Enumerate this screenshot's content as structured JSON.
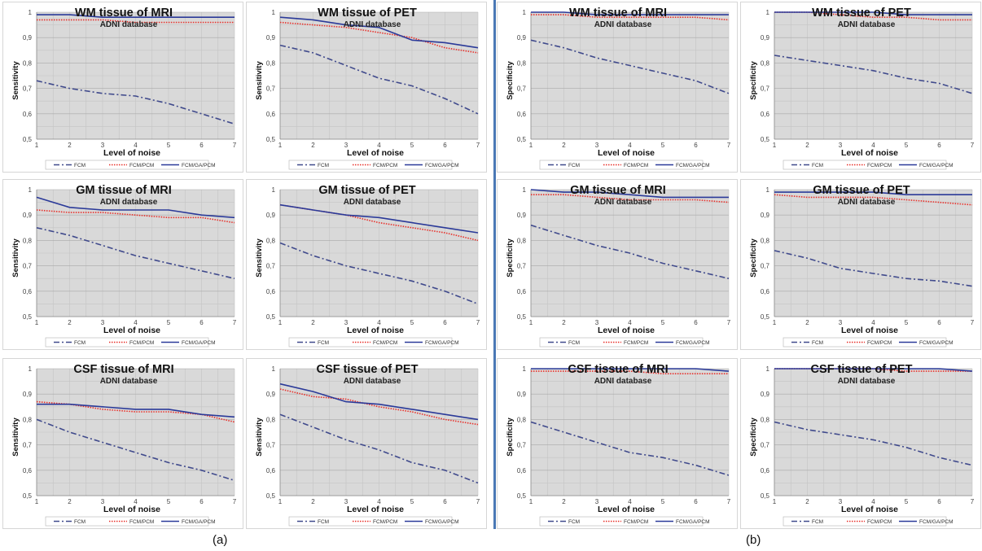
{
  "figure_labels": {
    "a": "(a)",
    "b": "(b)"
  },
  "colors": {
    "plot_bg": "#d9d9d9",
    "fcm": "#404a8c",
    "fcm_pcm": "#e8302a",
    "fcm_ga_pcm": "#2b3a99"
  },
  "chart_data": [
    {
      "id": "a-wm-mri",
      "group": "(a)",
      "type": "line",
      "title": "WM tissue of MRI",
      "subtitle": "ADNI database",
      "xlabel": "Level of noise",
      "ylabel": "Sensitivity",
      "x": [
        1,
        2,
        3,
        4,
        5,
        6,
        7
      ],
      "ylim": [
        0.5,
        1
      ],
      "yticks": [
        "0,5",
        "0,6",
        "0,7",
        "0,8",
        "0,9",
        "1"
      ],
      "xticks": [
        "1",
        "2",
        "3",
        "4",
        "5",
        "6",
        "7"
      ],
      "grid": true,
      "legend": "bottom",
      "series": [
        {
          "name": "FCM",
          "style": "dash-dot",
          "values": [
            0.73,
            0.7,
            0.68,
            0.67,
            0.64,
            0.6,
            0.56
          ]
        },
        {
          "name": "FCM/PCM",
          "style": "dotted",
          "values": [
            0.97,
            0.97,
            0.97,
            0.96,
            0.96,
            0.96,
            0.96
          ]
        },
        {
          "name": "FCM/GA/PCM",
          "style": "solid",
          "values": [
            0.99,
            0.99,
            0.98,
            0.98,
            0.98,
            0.98,
            0.98
          ]
        }
      ]
    },
    {
      "id": "a-wm-pet",
      "group": "(a)",
      "type": "line",
      "title": "WM tissue of PET",
      "subtitle": "ADNI database",
      "xlabel": "Level of noise",
      "ylabel": "Sensitivity",
      "x": [
        1,
        2,
        3,
        4,
        5,
        6,
        7
      ],
      "ylim": [
        0.5,
        1
      ],
      "yticks": [
        "0,5",
        "0,6",
        "0,7",
        "0,8",
        "0,9",
        "1"
      ],
      "xticks": [
        "1",
        "2",
        "3",
        "4",
        "5",
        "6",
        "7"
      ],
      "grid": true,
      "legend": "bottom",
      "series": [
        {
          "name": "FCM",
          "style": "dash-dot",
          "values": [
            0.87,
            0.84,
            0.79,
            0.74,
            0.71,
            0.66,
            0.6
          ]
        },
        {
          "name": "FCM/PCM",
          "style": "dotted",
          "values": [
            0.96,
            0.95,
            0.94,
            0.92,
            0.9,
            0.86,
            0.84
          ]
        },
        {
          "name": "FCM/GA/PCM",
          "style": "solid",
          "values": [
            0.98,
            0.97,
            0.95,
            0.94,
            0.89,
            0.88,
            0.86
          ]
        }
      ]
    },
    {
      "id": "b-wm-mri",
      "group": "(b)",
      "type": "line",
      "title": "WM tissue of MRI",
      "subtitle": "ADNI database",
      "xlabel": "Level of noise",
      "ylabel": "Specificity",
      "x": [
        1,
        2,
        3,
        4,
        5,
        6,
        7
      ],
      "ylim": [
        0.5,
        1
      ],
      "yticks": [
        "0,5",
        "0,6",
        "0,7",
        "0,8",
        "0,9",
        "1"
      ],
      "xticks": [
        "1",
        "2",
        "3",
        "4",
        "5",
        "6",
        "7"
      ],
      "grid": true,
      "legend": "bottom",
      "series": [
        {
          "name": "FCM",
          "style": "dash-dot",
          "values": [
            0.89,
            0.86,
            0.82,
            0.79,
            0.76,
            0.73,
            0.68
          ]
        },
        {
          "name": "FCM/PCM",
          "style": "dotted",
          "values": [
            0.99,
            0.99,
            0.98,
            0.98,
            0.98,
            0.98,
            0.97
          ]
        },
        {
          "name": "FCM/GA/PCM",
          "style": "solid",
          "values": [
            1.0,
            1.0,
            0.99,
            0.99,
            0.99,
            0.99,
            0.99
          ]
        }
      ]
    },
    {
      "id": "b-wm-pet",
      "group": "(b)",
      "type": "line",
      "title": "WM tissue of PET",
      "subtitle": "ADNI database",
      "xlabel": "Level of noise",
      "ylabel": "Specificity",
      "x": [
        1,
        2,
        3,
        4,
        5,
        6,
        7
      ],
      "ylim": [
        0.5,
        1
      ],
      "yticks": [
        "0,5",
        "0,6",
        "0,7",
        "0,8",
        "0,9",
        "1"
      ],
      "xticks": [
        "1",
        "2",
        "3",
        "4",
        "5",
        "6",
        "7"
      ],
      "grid": true,
      "legend": "bottom",
      "series": [
        {
          "name": "FCM",
          "style": "dash-dot",
          "values": [
            0.83,
            0.81,
            0.79,
            0.77,
            0.74,
            0.72,
            0.68
          ]
        },
        {
          "name": "FCM/PCM",
          "style": "dotted",
          "values": [
            1.0,
            1.0,
            0.99,
            0.98,
            0.98,
            0.97,
            0.97
          ]
        },
        {
          "name": "FCM/GA/PCM",
          "style": "solid",
          "values": [
            1.0,
            1.0,
            1.0,
            1.0,
            0.99,
            0.99,
            0.99
          ]
        }
      ]
    },
    {
      "id": "a-gm-mri",
      "group": "(a)",
      "type": "line",
      "title": "GM tissue of MRI",
      "subtitle": "ADNI database",
      "xlabel": "Level of noise",
      "ylabel": "Sensitivity",
      "x": [
        1,
        2,
        3,
        4,
        5,
        6,
        7
      ],
      "ylim": [
        0.5,
        1
      ],
      "yticks": [
        "0,5",
        "0,6",
        "0,7",
        "0,8",
        "0,9",
        "1"
      ],
      "xticks": [
        "1",
        "2",
        "3",
        "4",
        "5",
        "6",
        "7"
      ],
      "grid": true,
      "legend": "bottom",
      "series": [
        {
          "name": "FCM",
          "style": "dash-dot",
          "values": [
            0.85,
            0.82,
            0.78,
            0.74,
            0.71,
            0.68,
            0.65
          ]
        },
        {
          "name": "FCM/PCM",
          "style": "dotted",
          "values": [
            0.92,
            0.91,
            0.91,
            0.9,
            0.89,
            0.89,
            0.87
          ]
        },
        {
          "name": "FCM/GA/PCM",
          "style": "solid",
          "values": [
            0.97,
            0.93,
            0.92,
            0.92,
            0.92,
            0.9,
            0.89
          ]
        }
      ]
    },
    {
      "id": "a-gm-pet",
      "group": "(a)",
      "type": "line",
      "title": "GM tissue of PET",
      "subtitle": "ADNI database",
      "xlabel": "Level of noise",
      "ylabel": "Sensitivity",
      "x": [
        1,
        2,
        3,
        4,
        5,
        6,
        7
      ],
      "ylim": [
        0.5,
        1
      ],
      "yticks": [
        "0,5",
        "0,6",
        "0,7",
        "0,8",
        "0,9",
        "1"
      ],
      "xticks": [
        "1",
        "2",
        "3",
        "4",
        "5",
        "6",
        "7"
      ],
      "grid": true,
      "legend": "bottom",
      "series": [
        {
          "name": "FCM",
          "style": "dash-dot",
          "values": [
            0.79,
            0.74,
            0.7,
            0.67,
            0.64,
            0.6,
            0.55
          ]
        },
        {
          "name": "FCM/PCM",
          "style": "dotted",
          "values": [
            0.94,
            0.92,
            0.9,
            0.87,
            0.85,
            0.83,
            0.8
          ]
        },
        {
          "name": "FCM/GA/PCM",
          "style": "solid",
          "values": [
            0.94,
            0.92,
            0.9,
            0.89,
            0.87,
            0.85,
            0.83
          ]
        }
      ]
    },
    {
      "id": "b-gm-mri",
      "group": "(b)",
      "type": "line",
      "title": "GM tissue of MRI",
      "subtitle": "ADNI database",
      "xlabel": "Level of noise",
      "ylabel": "Specificity",
      "x": [
        1,
        2,
        3,
        4,
        5,
        6,
        7
      ],
      "ylim": [
        0.5,
        1
      ],
      "yticks": [
        "0,5",
        "0,6",
        "0,7",
        "0,8",
        "0,9",
        "1"
      ],
      "xticks": [
        "1",
        "2",
        "3",
        "4",
        "5",
        "6",
        "7"
      ],
      "grid": true,
      "legend": "bottom",
      "series": [
        {
          "name": "FCM",
          "style": "dash-dot",
          "values": [
            0.86,
            0.82,
            0.78,
            0.75,
            0.71,
            0.68,
            0.65
          ]
        },
        {
          "name": "FCM/PCM",
          "style": "dotted",
          "values": [
            0.98,
            0.98,
            0.97,
            0.96,
            0.96,
            0.96,
            0.95
          ]
        },
        {
          "name": "FCM/GA/PCM",
          "style": "solid",
          "values": [
            1.0,
            0.99,
            0.99,
            0.98,
            0.97,
            0.97,
            0.97
          ]
        }
      ]
    },
    {
      "id": "b-gm-pet",
      "group": "(b)",
      "type": "line",
      "title": "GM tissue of PET",
      "subtitle": "ADNI database",
      "xlabel": "Level of noise",
      "ylabel": "Specificity",
      "x": [
        1,
        2,
        3,
        4,
        5,
        6,
        7
      ],
      "ylim": [
        0.5,
        1
      ],
      "yticks": [
        "0,5",
        "0,6",
        "0,7",
        "0,8",
        "0,9",
        "1"
      ],
      "xticks": [
        "1",
        "2",
        "3",
        "4",
        "5",
        "6",
        "7"
      ],
      "grid": true,
      "legend": "bottom",
      "series": [
        {
          "name": "FCM",
          "style": "dash-dot",
          "values": [
            0.76,
            0.73,
            0.69,
            0.67,
            0.65,
            0.64,
            0.62
          ]
        },
        {
          "name": "FCM/PCM",
          "style": "dotted",
          "values": [
            0.98,
            0.97,
            0.97,
            0.97,
            0.96,
            0.95,
            0.94
          ]
        },
        {
          "name": "FCM/GA/PCM",
          "style": "solid",
          "values": [
            0.99,
            0.99,
            0.99,
            0.99,
            0.98,
            0.98,
            0.98
          ]
        }
      ]
    },
    {
      "id": "a-csf-mri",
      "group": "(a)",
      "type": "line",
      "title": "CSF tissue of MRI",
      "subtitle": "ADNI database",
      "xlabel": "Level of noise",
      "ylabel": "Sensitivity",
      "x": [
        1,
        2,
        3,
        4,
        5,
        6,
        7
      ],
      "ylim": [
        0.5,
        1
      ],
      "yticks": [
        "0,5",
        "0,6",
        "0,7",
        "0,8",
        "0,9",
        "1"
      ],
      "xticks": [
        "1",
        "2",
        "3",
        "4",
        "5",
        "6",
        "7"
      ],
      "grid": true,
      "legend": "bottom",
      "series": [
        {
          "name": "FCM",
          "style": "dash-dot",
          "values": [
            0.8,
            0.75,
            0.71,
            0.67,
            0.63,
            0.6,
            0.56
          ]
        },
        {
          "name": "FCM/PCM",
          "style": "dotted",
          "values": [
            0.87,
            0.86,
            0.84,
            0.83,
            0.83,
            0.82,
            0.79
          ]
        },
        {
          "name": "FCM/GA/PCM",
          "style": "solid",
          "values": [
            0.86,
            0.86,
            0.85,
            0.84,
            0.84,
            0.82,
            0.81
          ]
        }
      ]
    },
    {
      "id": "a-csf-pet",
      "group": "(a)",
      "type": "line",
      "title": "CSF tissue of PET",
      "subtitle": "ADNI database",
      "xlabel": "Level of noise",
      "ylabel": "Sensitivity",
      "x": [
        1,
        2,
        3,
        4,
        5,
        6,
        7
      ],
      "ylim": [
        0.5,
        1
      ],
      "yticks": [
        "0,5",
        "0,6",
        "0,7",
        "0,8",
        "0,9",
        "1"
      ],
      "xticks": [
        "1",
        "2",
        "3",
        "4",
        "5",
        "6",
        "7"
      ],
      "grid": true,
      "legend": "bottom",
      "series": [
        {
          "name": "FCM",
          "style": "dash-dot",
          "values": [
            0.82,
            0.77,
            0.72,
            0.68,
            0.63,
            0.6,
            0.55
          ]
        },
        {
          "name": "FCM/PCM",
          "style": "dotted",
          "values": [
            0.92,
            0.89,
            0.88,
            0.85,
            0.83,
            0.8,
            0.78
          ]
        },
        {
          "name": "FCM/GA/PCM",
          "style": "solid",
          "values": [
            0.94,
            0.91,
            0.87,
            0.86,
            0.84,
            0.82,
            0.8
          ]
        }
      ]
    },
    {
      "id": "b-csf-mri",
      "group": "(b)",
      "type": "line",
      "title": "CSF tissue of MRI",
      "subtitle": "ADNI database",
      "xlabel": "Level of noise",
      "ylabel": "Specificity",
      "x": [
        1,
        2,
        3,
        4,
        5,
        6,
        7
      ],
      "ylim": [
        0.5,
        1
      ],
      "yticks": [
        "0,5",
        "0,6",
        "0,7",
        "0,8",
        "0,9",
        "1"
      ],
      "xticks": [
        "1",
        "2",
        "3",
        "4",
        "5",
        "6",
        "7"
      ],
      "grid": true,
      "legend": "bottom",
      "series": [
        {
          "name": "FCM",
          "style": "dash-dot",
          "values": [
            0.79,
            0.75,
            0.71,
            0.67,
            0.65,
            0.62,
            0.58
          ]
        },
        {
          "name": "FCM/PCM",
          "style": "dotted",
          "values": [
            0.99,
            0.99,
            0.99,
            0.99,
            0.98,
            0.98,
            0.98
          ]
        },
        {
          "name": "FCM/GA/PCM",
          "style": "solid",
          "values": [
            1.0,
            1.0,
            1.0,
            1.0,
            1.0,
            1.0,
            0.99
          ]
        }
      ]
    },
    {
      "id": "b-csf-pet",
      "group": "(b)",
      "type": "line",
      "title": "CSF tissue of PET",
      "subtitle": "ADNI database",
      "xlabel": "Level of noise",
      "ylabel": "Specificity",
      "x": [
        1,
        2,
        3,
        4,
        5,
        6,
        7
      ],
      "ylim": [
        0.5,
        1
      ],
      "yticks": [
        "0,5",
        "0,6",
        "0,7",
        "0,8",
        "0,9",
        "1"
      ],
      "xticks": [
        "1",
        "2",
        "3",
        "4",
        "5",
        "6",
        "7"
      ],
      "grid": true,
      "legend": "bottom",
      "series": [
        {
          "name": "FCM",
          "style": "dash-dot",
          "values": [
            0.79,
            0.76,
            0.74,
            0.72,
            0.69,
            0.65,
            0.62
          ]
        },
        {
          "name": "FCM/PCM",
          "style": "dotted",
          "values": [
            1.0,
            1.0,
            1.0,
            1.0,
            0.99,
            0.99,
            0.99
          ]
        },
        {
          "name": "FCM/GA/PCM",
          "style": "solid",
          "values": [
            1.0,
            1.0,
            1.0,
            1.0,
            1.0,
            1.0,
            0.99
          ]
        }
      ]
    }
  ]
}
